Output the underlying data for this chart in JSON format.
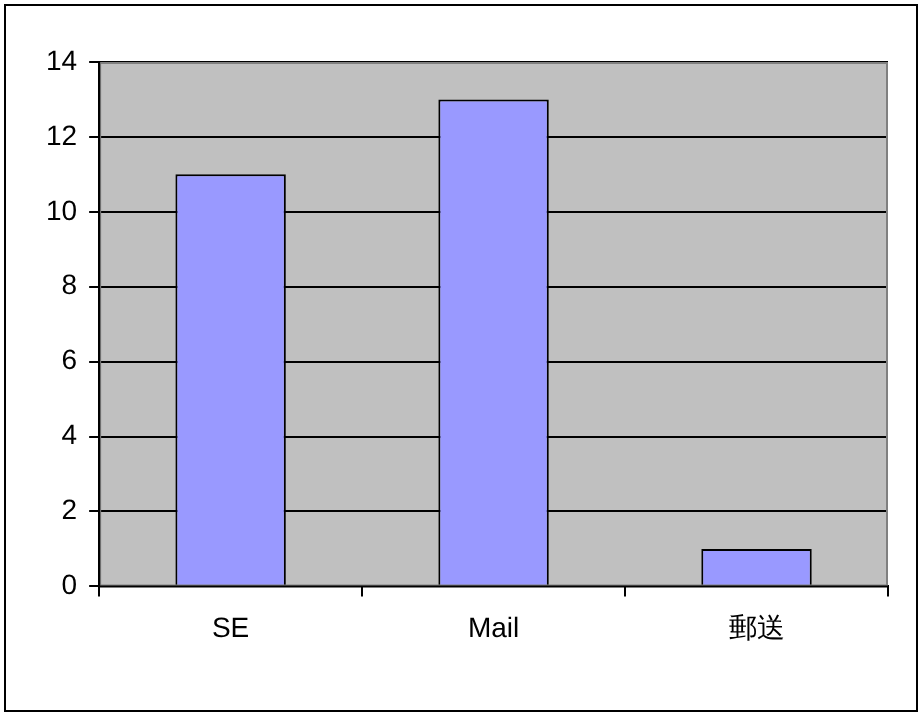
{
  "chart_data": {
    "type": "bar",
    "categories": [
      "SE",
      "Mail",
      "郵送"
    ],
    "values": [
      11,
      13,
      1
    ],
    "color": "#9999ff",
    "ylim": [
      0,
      14
    ],
    "yticks": [
      0,
      2,
      4,
      6,
      8,
      10,
      12,
      14
    ],
    "grid": "y"
  }
}
